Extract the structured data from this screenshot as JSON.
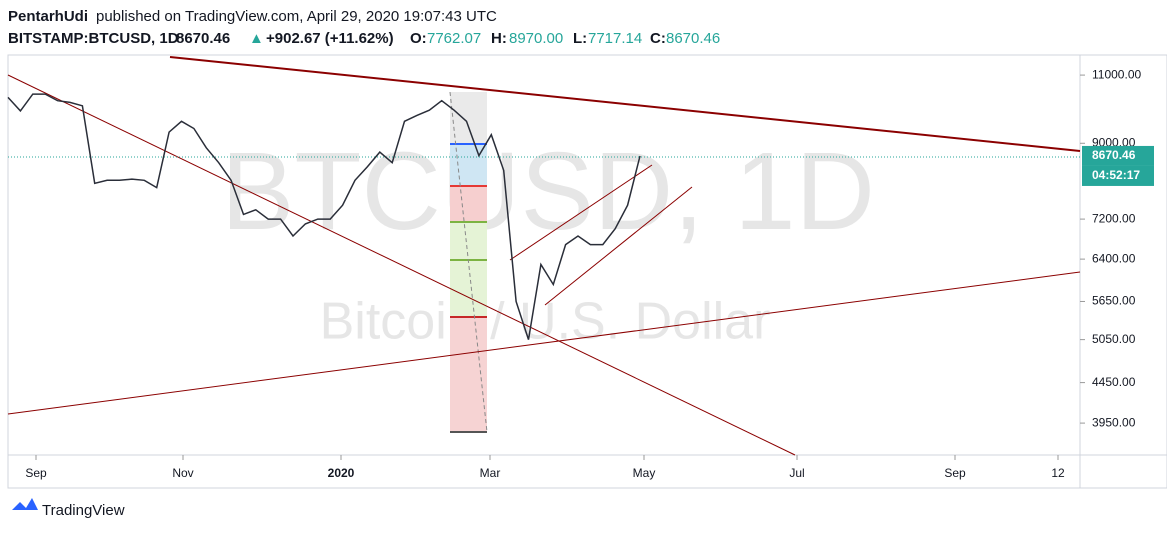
{
  "header": {
    "author": "PentarhUdi",
    "published": "published on TradingView.com, April 29, 2020 19:07:43 UTC",
    "symbol": "BITSTAMP:BTCUSD, 1D",
    "last": "8670.46",
    "arrow": "▲",
    "change": "+902.67 (+11.62%)",
    "o_label": "O:",
    "o": "7762.07",
    "h_label": "H:",
    "h": "8970.00",
    "l_label": "L:",
    "l": "7717.14",
    "c_label": "C:",
    "c": "8670.46"
  },
  "chart_data": {
    "type": "line",
    "watermark": "BTCUSD, 1D",
    "watermark_sub": "Bitcoin / U.S. Dollar",
    "color": "#2a2e39",
    "log_scale": true,
    "values": [
      10300,
      9900,
      10400,
      10400,
      10200,
      10150,
      10050,
      8000,
      8070,
      8070,
      8100,
      8070,
      7900,
      9300,
      9600,
      9400,
      8880,
      8500,
      8070,
      7300,
      7400,
      7200,
      7200,
      6850,
      7100,
      7200,
      7200,
      7500,
      8070,
      8400,
      8770,
      8500,
      9600,
      9770,
      9920,
      10200,
      9920,
      9600,
      8680,
      9230,
      8310,
      5650,
      5050,
      6300,
      5940,
      6680,
      6850,
      6680,
      6680,
      7000,
      7500,
      8670.46
    ],
    "ylim": [
      3596,
      11670
    ],
    "yticks": [
      {
        "value": 3950,
        "label": "3950.00"
      },
      {
        "value": 4450,
        "label": "4450.00"
      },
      {
        "value": 5050,
        "label": "5050.00"
      },
      {
        "value": 5650,
        "label": "5650.00"
      },
      {
        "value": 6400,
        "label": "6400.00"
      },
      {
        "value": 7200,
        "label": "7200.00"
      },
      {
        "value": 9000,
        "label": "9000.00"
      },
      {
        "value": 11000,
        "label": "11000.00"
      }
    ],
    "xticks": [
      "Sep",
      "Nov",
      "2020",
      "Mar",
      "May",
      "Jul",
      "Sep",
      "12"
    ],
    "price_label": 8670.46,
    "countdown": "04:52:17"
  },
  "footer": {
    "brand": "TradingView"
  }
}
